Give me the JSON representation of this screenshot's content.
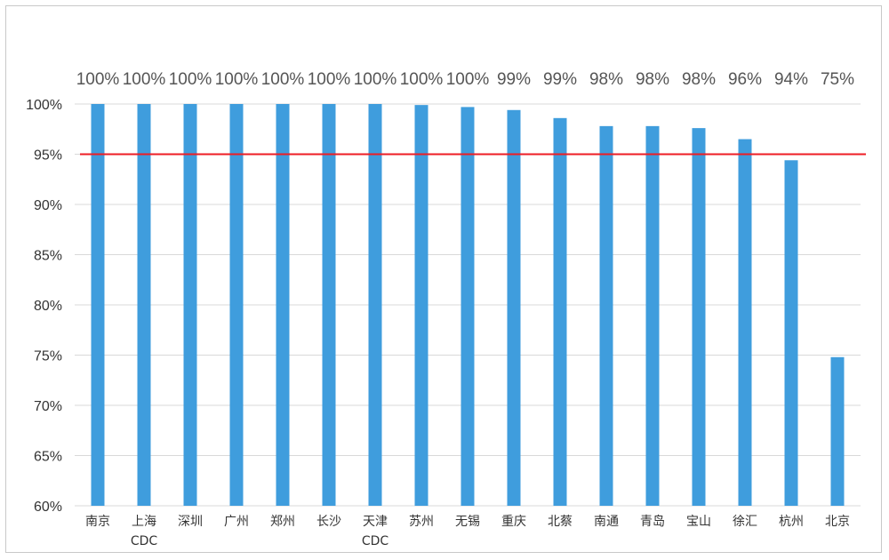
{
  "chart_data": {
    "type": "bar",
    "title": "",
    "xlabel": "",
    "ylabel": "",
    "ylim": [
      60,
      100
    ],
    "yticks": [
      "60%",
      "65%",
      "70%",
      "75%",
      "80%",
      "85%",
      "90%",
      "95%",
      "100%"
    ],
    "grid": true,
    "bar_color": "#3f9ddd",
    "reference_line": {
      "value": 95,
      "color": "#ee1c24"
    },
    "categories": [
      [
        "南京"
      ],
      [
        "上海",
        "CDC"
      ],
      [
        "深圳"
      ],
      [
        "广州"
      ],
      [
        "郑州"
      ],
      [
        "长沙"
      ],
      [
        "天津",
        "CDC"
      ],
      [
        "苏州"
      ],
      [
        "无锡"
      ],
      [
        "重庆"
      ],
      [
        "北蔡"
      ],
      [
        "南通"
      ],
      [
        "青岛"
      ],
      [
        "宝山"
      ],
      [
        "徐汇"
      ],
      [
        "杭州"
      ],
      [
        "北京"
      ]
    ],
    "values": [
      100,
      100,
      100,
      100,
      100,
      100,
      100,
      99.9,
      99.7,
      99.4,
      98.6,
      97.8,
      97.8,
      97.6,
      96.5,
      94.4,
      74.8
    ],
    "data_labels": [
      "100%",
      "100%",
      "100%",
      "100%",
      "100%",
      "100%",
      "100%",
      "100%",
      "100%",
      "99%",
      "99%",
      "98%",
      "98%",
      "98%",
      "96%",
      "94%",
      "75%"
    ]
  }
}
